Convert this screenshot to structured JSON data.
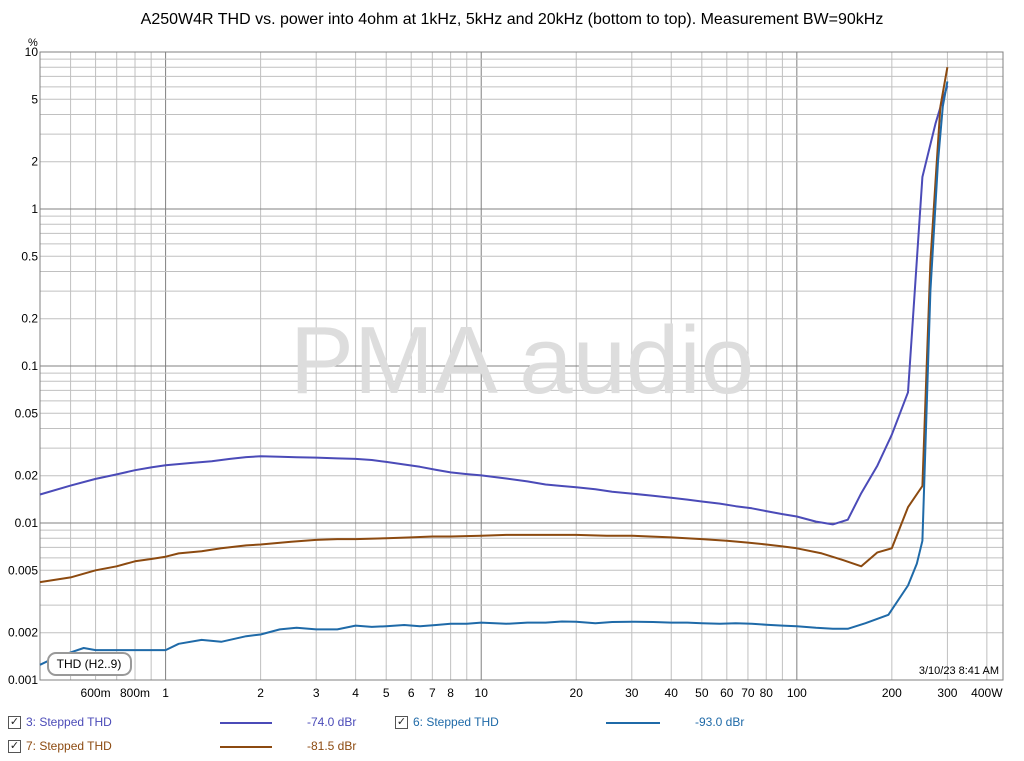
{
  "chart_data": {
    "type": "line",
    "title": "A250W4R THD vs. power into 4ohm at 1kHz, 5kHz and 20kHz (bottom to top). Measurement BW=90kHz",
    "ylabel": "%",
    "xlabel": "",
    "x_scale": "log",
    "y_scale": "log",
    "xlim": [
      0.4,
      450
    ],
    "ylim": [
      0.001,
      10
    ],
    "grid": true,
    "x_ticks": [
      {
        "value": 0.6,
        "label": "600m"
      },
      {
        "value": 0.8,
        "label": "800m"
      },
      {
        "value": 1,
        "label": "1"
      },
      {
        "value": 2,
        "label": "2"
      },
      {
        "value": 3,
        "label": "3"
      },
      {
        "value": 4,
        "label": "4"
      },
      {
        "value": 5,
        "label": "5"
      },
      {
        "value": 6,
        "label": "6"
      },
      {
        "value": 7,
        "label": "7"
      },
      {
        "value": 8,
        "label": "8"
      },
      {
        "value": 10,
        "label": "10"
      },
      {
        "value": 20,
        "label": "20"
      },
      {
        "value": 30,
        "label": "30"
      },
      {
        "value": 40,
        "label": "40"
      },
      {
        "value": 50,
        "label": "50"
      },
      {
        "value": 60,
        "label": "60"
      },
      {
        "value": 70,
        "label": "70"
      },
      {
        "value": 80,
        "label": "80"
      },
      {
        "value": 100,
        "label": "100"
      },
      {
        "value": 200,
        "label": "200"
      },
      {
        "value": 300,
        "label": "300"
      },
      {
        "value": 400,
        "label": "400W"
      }
    ],
    "y_ticks": [
      {
        "value": 10,
        "label": "10"
      },
      {
        "value": 5,
        "label": "5"
      },
      {
        "value": 2,
        "label": "2"
      },
      {
        "value": 1,
        "label": "1"
      },
      {
        "value": 0.5,
        "label": "0.5"
      },
      {
        "value": 0.2,
        "label": "0.2"
      },
      {
        "value": 0.1,
        "label": "0.1"
      },
      {
        "value": 0.05,
        "label": "0.05"
      },
      {
        "value": 0.02,
        "label": "0.02"
      },
      {
        "value": 0.01,
        "label": "0.01"
      },
      {
        "value": 0.005,
        "label": "0.005"
      },
      {
        "value": 0.002,
        "label": "0.002"
      },
      {
        "value": 0.001,
        "label": "0.001"
      }
    ],
    "series": [
      {
        "name": "3: Stepped THD",
        "color": "#4b4bb8",
        "x": [
          0.4,
          0.5,
          0.6,
          0.7,
          0.8,
          0.9,
          1.0,
          1.2,
          1.4,
          1.6,
          1.8,
          2.0,
          2.3,
          2.6,
          3.0,
          3.5,
          4.0,
          4.5,
          5.0,
          5.7,
          6.4,
          7.2,
          8.0,
          9.0,
          10,
          12,
          14,
          16,
          18,
          20,
          23,
          26,
          30,
          35,
          40,
          45,
          50,
          57,
          64,
          72,
          80,
          90,
          100,
          115,
          130,
          145,
          160,
          180,
          200,
          225,
          250,
          275,
          290,
          300
        ],
        "y": [
          0.0152,
          0.0173,
          0.0191,
          0.0204,
          0.0217,
          0.0226,
          0.0233,
          0.0241,
          0.0247,
          0.0256,
          0.0263,
          0.0266,
          0.0264,
          0.0262,
          0.0261,
          0.0258,
          0.0256,
          0.0252,
          0.0245,
          0.0236,
          0.0228,
          0.0218,
          0.021,
          0.0205,
          0.0201,
          0.0192,
          0.0184,
          0.0176,
          0.0172,
          0.0169,
          0.0164,
          0.0158,
          0.0154,
          0.0149,
          0.0145,
          0.0141,
          0.0137,
          0.0133,
          0.0128,
          0.0124,
          0.0119,
          0.0114,
          0.011,
          0.0102,
          0.0098,
          0.0105,
          0.0155,
          0.0232,
          0.0365,
          0.068,
          1.6,
          3.5,
          5.0,
          6.1
        ]
      },
      {
        "name": "7: Stepped THD",
        "color": "#8c4a10",
        "x": [
          0.4,
          0.5,
          0.6,
          0.7,
          0.8,
          0.9,
          1.0,
          1.1,
          1.3,
          1.5,
          1.8,
          2.0,
          2.5,
          3.0,
          3.5,
          4.0,
          5.0,
          6.0,
          7.0,
          8.0,
          10,
          12,
          15,
          20,
          25,
          30,
          40,
          50,
          60,
          70,
          80,
          90,
          100,
          120,
          140,
          160,
          180,
          200,
          225,
          250,
          265,
          275,
          285,
          300
        ],
        "y": [
          0.0042,
          0.0045,
          0.005,
          0.0053,
          0.0057,
          0.0059,
          0.0061,
          0.0064,
          0.0066,
          0.0069,
          0.0072,
          0.0073,
          0.0076,
          0.0078,
          0.0079,
          0.0079,
          0.008,
          0.0081,
          0.0082,
          0.0082,
          0.0083,
          0.0084,
          0.0084,
          0.0084,
          0.0083,
          0.0083,
          0.0081,
          0.0079,
          0.0077,
          0.0075,
          0.0073,
          0.0071,
          0.0069,
          0.0064,
          0.0058,
          0.0053,
          0.0065,
          0.0069,
          0.0126,
          0.0172,
          0.46,
          1.5,
          4.5,
          8.0
        ]
      },
      {
        "name": "6: Stepped THD",
        "color": "#1f6aa8",
        "x": [
          0.4,
          0.45,
          0.5,
          0.55,
          0.6,
          0.7,
          0.8,
          0.9,
          1.0,
          1.1,
          1.3,
          1.5,
          1.8,
          2.0,
          2.3,
          2.6,
          3.0,
          3.5,
          4.0,
          4.5,
          5.0,
          5.7,
          6.4,
          7.2,
          8.0,
          9.0,
          10,
          12,
          14,
          16,
          18,
          20,
          23,
          26,
          30,
          35,
          40,
          45,
          50,
          57,
          64,
          72,
          80,
          90,
          100,
          115,
          130,
          145,
          165,
          195,
          225,
          240,
          250,
          265,
          280,
          290,
          300
        ],
        "y": [
          0.00125,
          0.0014,
          0.0015,
          0.0016,
          0.00155,
          0.00155,
          0.00155,
          0.00155,
          0.00155,
          0.0017,
          0.0018,
          0.00175,
          0.0019,
          0.00195,
          0.0021,
          0.00215,
          0.0021,
          0.0021,
          0.00222,
          0.00218,
          0.0022,
          0.00224,
          0.0022,
          0.00224,
          0.00228,
          0.00228,
          0.00232,
          0.00228,
          0.00232,
          0.00232,
          0.00236,
          0.00235,
          0.0023,
          0.00234,
          0.00235,
          0.00234,
          0.00232,
          0.00232,
          0.0023,
          0.00228,
          0.0023,
          0.00228,
          0.00225,
          0.00222,
          0.0022,
          0.00215,
          0.00212,
          0.00212,
          0.0023,
          0.0026,
          0.004,
          0.0055,
          0.0077,
          0.3,
          2.0,
          4.5,
          6.5
        ]
      }
    ],
    "annotations": [
      {
        "text": "PMA audio",
        "kind": "watermark"
      },
      {
        "text": "THD (H2..9)",
        "kind": "badge"
      },
      {
        "text": "3/10/23 8:41 AM",
        "kind": "timestamp"
      }
    ]
  },
  "legend": {
    "items": [
      {
        "label": "3: Stepped THD",
        "value": "-74.0 dBr",
        "color": "#4b4bb8",
        "checked": true
      },
      {
        "label": "6: Stepped THD",
        "value": "-93.0 dBr",
        "color": "#1f6aa8",
        "checked": true
      },
      {
        "label": "7: Stepped THD",
        "value": "-81.5 dBr",
        "color": "#8c4a10",
        "checked": true
      }
    ],
    "check_mark": "✓"
  },
  "colors": {
    "major_grid": "#808080",
    "minor_grid": "#c0c0c0",
    "watermark": "#dddddd"
  }
}
